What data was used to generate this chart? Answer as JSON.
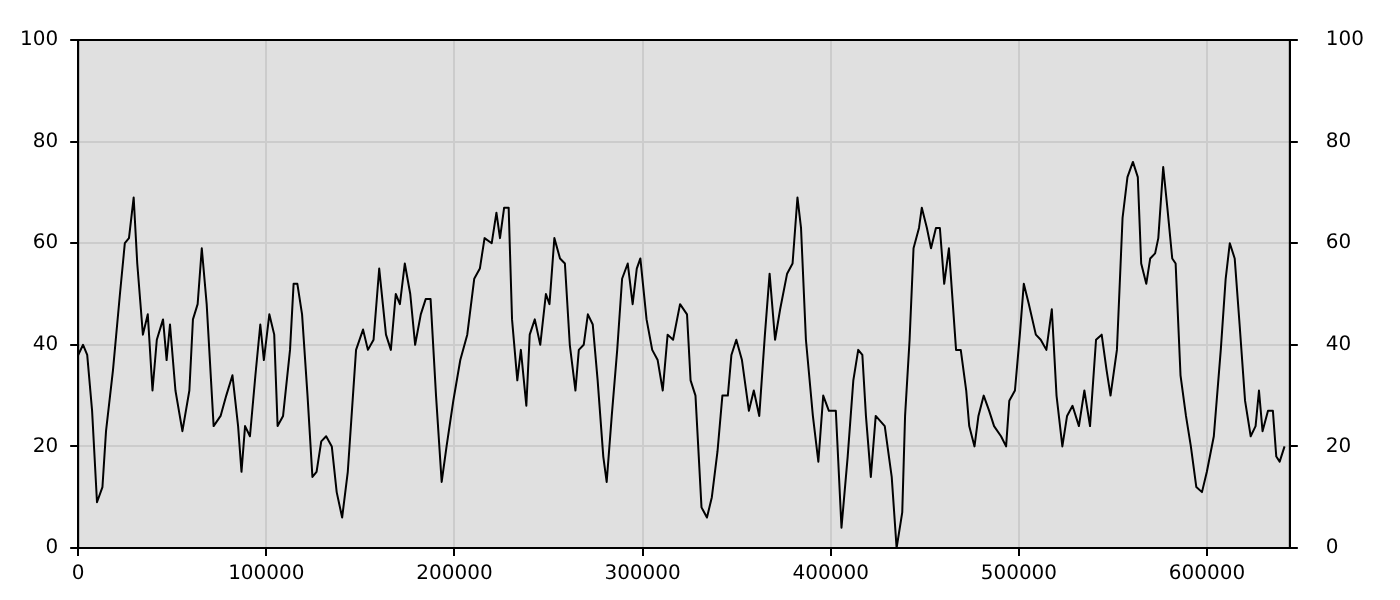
{
  "chart_data": {
    "type": "line",
    "xlim": [
      0,
      644000
    ],
    "xticks": [
      0,
      100000,
      200000,
      300000,
      400000,
      500000,
      600000
    ],
    "ylim": [
      0,
      100
    ],
    "yticks": [
      0,
      20,
      40,
      60,
      80,
      100
    ],
    "y2lim": [
      0,
      100
    ],
    "y2ticks": [
      0,
      20,
      40,
      60,
      80,
      100
    ],
    "grid": true,
    "legend": false,
    "marker": "none",
    "line_style": "solid",
    "series": [
      {
        "color": "#000000",
        "x": [
          0,
          2600,
          4800,
          7400,
          10000,
          12900,
          14800,
          18500,
          22200,
          24800,
          27000,
          29500,
          31400,
          34400,
          37000,
          39500,
          41800,
          45100,
          47000,
          48800,
          51700,
          55400,
          59100,
          61000,
          63500,
          65700,
          68300,
          72000,
          75700,
          78700,
          82000,
          85000,
          86800,
          88700,
          91300,
          94200,
          96800,
          98700,
          101600,
          104200,
          106000,
          108900,
          112600,
          114500,
          116500,
          119000,
          121900,
          124500,
          126700,
          129200,
          131800,
          134800,
          137400,
          140300,
          143300,
          147700,
          151400,
          154000,
          157000,
          160000,
          163600,
          166200,
          168800,
          171000,
          173600,
          176500,
          179100,
          182100,
          184700,
          187300,
          190200,
          193200,
          195800,
          199400,
          203100,
          206800,
          210500,
          213500,
          216000,
          219800,
          222300,
          224200,
          226400,
          228800,
          230600,
          233400,
          235300,
          238200,
          240000,
          242700,
          245600,
          248600,
          250500,
          253100,
          256100,
          258700,
          261300,
          264300,
          266100,
          268700,
          270900,
          273500,
          276100,
          279100,
          280900,
          283600,
          286500,
          289100,
          292100,
          294700,
          296900,
          298800,
          302100,
          305100,
          308000,
          310700,
          313300,
          316200,
          319900,
          323600,
          325500,
          328100,
          331300,
          334200,
          336800,
          339800,
          342400,
          345300,
          347200,
          349800,
          352800,
          356500,
          359100,
          362000,
          365000,
          367500,
          370400,
          373100,
          376800,
          379700,
          382300,
          384200,
          386800,
          390500,
          393400,
          396000,
          399000,
          402700,
          405700,
          409000,
          412000,
          414600,
          416800,
          418700,
          421300,
          423900,
          428700,
          432400,
          435000,
          438000,
          439500,
          441900,
          444000,
          446900,
          448400,
          451100,
          453300,
          455900,
          458000,
          460300,
          462800,
          466600,
          469100,
          472000,
          473600,
          476400,
          478500,
          481300,
          484200,
          486800,
          490500,
          493200,
          494900,
          497900,
          500500,
          502600,
          505300,
          509000,
          511600,
          514600,
          517500,
          520000,
          523100,
          525600,
          528500,
          531900,
          534800,
          537800,
          541000,
          544000,
          546600,
          548700,
          552100,
          555100,
          557700,
          560600,
          563200,
          565000,
          567700,
          569800,
          572400,
          574100,
          576700,
          578900,
          581500,
          583300,
          585900,
          588800,
          591400,
          594300,
          597300,
          599900,
          603600,
          607300,
          609900,
          612100,
          614700,
          617300,
          620200,
          623200,
          625800,
          627600,
          629500,
          632400,
          635000,
          636800,
          638600,
          641200
        ],
        "values": [
          38,
          40,
          38,
          27,
          9,
          12,
          23,
          35,
          50,
          60,
          61,
          69,
          56,
          42,
          46,
          31,
          41,
          45,
          37,
          44,
          31,
          23,
          31,
          45,
          48,
          59,
          48,
          24,
          26,
          30,
          34,
          24,
          15,
          24,
          22,
          34,
          44,
          37,
          46,
          42,
          24,
          26,
          39,
          52,
          52,
          46,
          30,
          14,
          15,
          21,
          22,
          20,
          11,
          6,
          15,
          39,
          43,
          39,
          41,
          55,
          42,
          39,
          50,
          48,
          56,
          50,
          40,
          46,
          49,
          49,
          30,
          13,
          20,
          29,
          37,
          42,
          53,
          55,
          61,
          60,
          66,
          61,
          67,
          67,
          45,
          33,
          39,
          28,
          42,
          45,
          40,
          50,
          48,
          61,
          57,
          56,
          40,
          31,
          39,
          40,
          46,
          44,
          33,
          18,
          13,
          26,
          39,
          53,
          56,
          48,
          55,
          57,
          45,
          39,
          37,
          31,
          42,
          41,
          48,
          46,
          33,
          30,
          8,
          6,
          10,
          19,
          30,
          30,
          38,
          41,
          37,
          27,
          31,
          26,
          42,
          54,
          41,
          47,
          54,
          56,
          69,
          63,
          41,
          26,
          17,
          30,
          27,
          27,
          4,
          18,
          33,
          39,
          38,
          26,
          14,
          26,
          24,
          14,
          0,
          7,
          26,
          41,
          59,
          63,
          67,
          63,
          59,
          63,
          63,
          52,
          59,
          39,
          39,
          31,
          24,
          20,
          26,
          30,
          27,
          24,
          22,
          20,
          29,
          31,
          42,
          52,
          48,
          42,
          41,
          39,
          47,
          30,
          20,
          26,
          28,
          24,
          31,
          24,
          41,
          42,
          35,
          30,
          39,
          65,
          73,
          76,
          73,
          56,
          52,
          57,
          58,
          61,
          75,
          67,
          57,
          56,
          34,
          26,
          20,
          12,
          11,
          15,
          22,
          39,
          53,
          60,
          57,
          44,
          29,
          22,
          24,
          31,
          23,
          27,
          27,
          18,
          17,
          20
        ]
      }
    ]
  }
}
